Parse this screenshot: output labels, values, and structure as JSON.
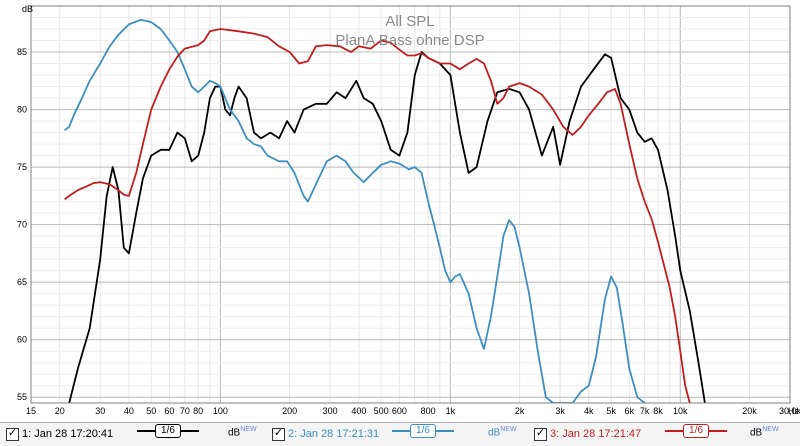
{
  "chart_data": {
    "type": "line",
    "title": "All SPL",
    "subtitle": "PlanA Bass ohne DSP",
    "ylabel": "dB",
    "xlabel": "",
    "x_scale": "log",
    "xlim": [
      15,
      30000
    ],
    "ylim": [
      54.5,
      89
    ],
    "grid": true,
    "x_ticks": [
      {
        "v": 15,
        "l": "15"
      },
      {
        "v": 20,
        "l": "20"
      },
      {
        "v": 30,
        "l": "30"
      },
      {
        "v": 40,
        "l": "40"
      },
      {
        "v": 50,
        "l": "50"
      },
      {
        "v": 60,
        "l": "60"
      },
      {
        "v": 70,
        "l": "70"
      },
      {
        "v": 80,
        "l": "80"
      },
      {
        "v": 100,
        "l": "100"
      },
      {
        "v": 200,
        "l": "200"
      },
      {
        "v": 300,
        "l": "300"
      },
      {
        "v": 400,
        "l": "400"
      },
      {
        "v": 500,
        "l": "500"
      },
      {
        "v": 600,
        "l": "600"
      },
      {
        "v": 800,
        "l": "800"
      },
      {
        "v": 1000,
        "l": "1k"
      },
      {
        "v": 2000,
        "l": "2k"
      },
      {
        "v": 3000,
        "l": "3k"
      },
      {
        "v": 4000,
        "l": "4k"
      },
      {
        "v": 5000,
        "l": "5k"
      },
      {
        "v": 6000,
        "l": "6k"
      },
      {
        "v": 7000,
        "l": "7k"
      },
      {
        "v": 8000,
        "l": "8k"
      },
      {
        "v": 10000,
        "l": "10k"
      },
      {
        "v": 20000,
        "l": "20k"
      },
      {
        "v": 30000,
        "l": "30,0k"
      }
    ],
    "x_unit_label": "Hz",
    "y_ticks": [
      55,
      60,
      65,
      70,
      75,
      80,
      85
    ],
    "series": [
      {
        "name": "1: Jan 28 17:20:41",
        "color": "#000000",
        "points": [
          [
            22,
            54.5
          ],
          [
            24,
            57.5
          ],
          [
            27,
            61
          ],
          [
            30,
            67
          ],
          [
            32,
            72.5
          ],
          [
            34,
            75
          ],
          [
            36,
            73
          ],
          [
            38,
            68
          ],
          [
            40,
            67.5
          ],
          [
            43,
            71
          ],
          [
            46,
            74
          ],
          [
            50,
            76
          ],
          [
            55,
            76.5
          ],
          [
            60,
            76.5
          ],
          [
            65,
            78
          ],
          [
            70,
            77.5
          ],
          [
            75,
            75.5
          ],
          [
            80,
            76
          ],
          [
            85,
            78
          ],
          [
            90,
            81
          ],
          [
            95,
            82
          ],
          [
            100,
            82
          ],
          [
            105,
            80
          ],
          [
            110,
            79.5
          ],
          [
            115,
            81
          ],
          [
            120,
            82
          ],
          [
            130,
            81
          ],
          [
            140,
            78
          ],
          [
            150,
            77.5
          ],
          [
            165,
            78
          ],
          [
            180,
            77.5
          ],
          [
            195,
            79
          ],
          [
            210,
            78
          ],
          [
            230,
            80
          ],
          [
            260,
            80.5
          ],
          [
            290,
            80.5
          ],
          [
            320,
            81.5
          ],
          [
            350,
            81
          ],
          [
            390,
            82.5
          ],
          [
            420,
            81
          ],
          [
            460,
            80.5
          ],
          [
            500,
            79
          ],
          [
            550,
            76.5
          ],
          [
            600,
            76
          ],
          [
            650,
            78
          ],
          [
            700,
            83
          ],
          [
            750,
            85
          ],
          [
            800,
            84.5
          ],
          [
            900,
            84
          ],
          [
            1000,
            83
          ],
          [
            1100,
            78
          ],
          [
            1200,
            74.5
          ],
          [
            1300,
            75
          ],
          [
            1450,
            79
          ],
          [
            1600,
            81.5
          ],
          [
            1800,
            81.8
          ],
          [
            2000,
            81.5
          ],
          [
            2200,
            80
          ],
          [
            2500,
            76
          ],
          [
            2800,
            78.5
          ],
          [
            3000,
            75.2
          ],
          [
            3300,
            79
          ],
          [
            3700,
            82
          ],
          [
            4200,
            83.5
          ],
          [
            4700,
            84.8
          ],
          [
            5000,
            84.5
          ],
          [
            5500,
            81
          ],
          [
            6000,
            80
          ],
          [
            6500,
            78
          ],
          [
            7000,
            77.2
          ],
          [
            7500,
            77.5
          ],
          [
            8000,
            76.5
          ],
          [
            8800,
            73
          ],
          [
            9500,
            69
          ],
          [
            10000,
            66
          ],
          [
            11000,
            62.5
          ],
          [
            12000,
            58
          ],
          [
            12800,
            54.5
          ]
        ]
      },
      {
        "name": "2: Jan 28 17:21:31",
        "color": "#3c8fc0",
        "points": [
          [
            21,
            78.2
          ],
          [
            22,
            78.5
          ],
          [
            23,
            79.5
          ],
          [
            25,
            81
          ],
          [
            27,
            82.5
          ],
          [
            30,
            84
          ],
          [
            33,
            85.5
          ],
          [
            36,
            86.5
          ],
          [
            40,
            87.4
          ],
          [
            45,
            87.8
          ],
          [
            50,
            87.6
          ],
          [
            55,
            87
          ],
          [
            60,
            86
          ],
          [
            65,
            85
          ],
          [
            70,
            83.5
          ],
          [
            75,
            82
          ],
          [
            80,
            81.5
          ],
          [
            85,
            82
          ],
          [
            90,
            82.5
          ],
          [
            95,
            82.3
          ],
          [
            100,
            82
          ],
          [
            110,
            80
          ],
          [
            120,
            79
          ],
          [
            130,
            77.5
          ],
          [
            140,
            77
          ],
          [
            150,
            76.8
          ],
          [
            160,
            76
          ],
          [
            180,
            75.5
          ],
          [
            195,
            75.5
          ],
          [
            210,
            74.5
          ],
          [
            230,
            72.5
          ],
          [
            240,
            72
          ],
          [
            260,
            73.5
          ],
          [
            290,
            75.5
          ],
          [
            320,
            76
          ],
          [
            350,
            75.5
          ],
          [
            380,
            74.5
          ],
          [
            420,
            73.7
          ],
          [
            460,
            74.5
          ],
          [
            500,
            75.2
          ],
          [
            550,
            75.5
          ],
          [
            600,
            75.3
          ],
          [
            660,
            74.8
          ],
          [
            700,
            75
          ],
          [
            750,
            74.5
          ],
          [
            800,
            72
          ],
          [
            850,
            70
          ],
          [
            900,
            68
          ],
          [
            950,
            66
          ],
          [
            1000,
            65
          ],
          [
            1050,
            65.5
          ],
          [
            1100,
            65.7
          ],
          [
            1200,
            64
          ],
          [
            1300,
            61
          ],
          [
            1400,
            59.2
          ],
          [
            1500,
            62
          ],
          [
            1600,
            65.5
          ],
          [
            1700,
            69
          ],
          [
            1800,
            70.4
          ],
          [
            1900,
            69.8
          ],
          [
            2000,
            68
          ],
          [
            2200,
            64
          ],
          [
            2400,
            59
          ],
          [
            2600,
            55
          ],
          [
            2800,
            54.5
          ],
          [
            3400,
            54.5
          ],
          [
            3700,
            55.5
          ],
          [
            4000,
            56
          ],
          [
            4300,
            58.5
          ],
          [
            4700,
            63.5
          ],
          [
            5000,
            65.5
          ],
          [
            5300,
            64.5
          ],
          [
            5600,
            61.5
          ],
          [
            6000,
            57.5
          ],
          [
            6500,
            55
          ],
          [
            7000,
            54.5
          ]
        ]
      },
      {
        "name": "3: Jan 28 17:21:47",
        "color": "#c21e1e",
        "points": [
          [
            21,
            72.2
          ],
          [
            22,
            72.5
          ],
          [
            24,
            73
          ],
          [
            26,
            73.3
          ],
          [
            28,
            73.6
          ],
          [
            30,
            73.7
          ],
          [
            33,
            73.5
          ],
          [
            36,
            73
          ],
          [
            38,
            72.6
          ],
          [
            40,
            72.5
          ],
          [
            43,
            74.5
          ],
          [
            46,
            77
          ],
          [
            50,
            80
          ],
          [
            55,
            82
          ],
          [
            60,
            83.5
          ],
          [
            65,
            84.6
          ],
          [
            70,
            85.3
          ],
          [
            80,
            85.6
          ],
          [
            85,
            86
          ],
          [
            90,
            86.8
          ],
          [
            100,
            87
          ],
          [
            120,
            86.8
          ],
          [
            140,
            86.6
          ],
          [
            160,
            86.3
          ],
          [
            180,
            85.5
          ],
          [
            200,
            85
          ],
          [
            220,
            84
          ],
          [
            240,
            84.2
          ],
          [
            260,
            85.5
          ],
          [
            290,
            85.6
          ],
          [
            330,
            85.5
          ],
          [
            370,
            85
          ],
          [
            400,
            85.5
          ],
          [
            450,
            85.3
          ],
          [
            500,
            86
          ],
          [
            550,
            85.8
          ],
          [
            600,
            85.2
          ],
          [
            650,
            84.7
          ],
          [
            700,
            84.7
          ],
          [
            750,
            84.9
          ],
          [
            800,
            84.5
          ],
          [
            900,
            84
          ],
          [
            1000,
            84
          ],
          [
            1100,
            83.5
          ],
          [
            1200,
            84
          ],
          [
            1300,
            84.4
          ],
          [
            1400,
            84
          ],
          [
            1500,
            82.5
          ],
          [
            1600,
            80.5
          ],
          [
            1700,
            81
          ],
          [
            1800,
            82
          ],
          [
            2000,
            82.3
          ],
          [
            2200,
            82
          ],
          [
            2500,
            81.3
          ],
          [
            2800,
            80
          ],
          [
            3100,
            78.5
          ],
          [
            3400,
            77.8
          ],
          [
            3700,
            78.5
          ],
          [
            4000,
            79.5
          ],
          [
            4400,
            80.5
          ],
          [
            4800,
            81.5
          ],
          [
            5200,
            81.8
          ],
          [
            5500,
            80.5
          ],
          [
            6000,
            77
          ],
          [
            6500,
            74
          ],
          [
            7000,
            72
          ],
          [
            7500,
            70.5
          ],
          [
            8000,
            68.5
          ],
          [
            9000,
            64.5
          ],
          [
            9500,
            62
          ],
          [
            10000,
            59
          ],
          [
            10500,
            56
          ],
          [
            11000,
            54.5
          ]
        ]
      }
    ]
  },
  "legend": {
    "items": [
      {
        "label": "1: Jan 28 17:20:41",
        "smoothing": "1/6",
        "unit": "dB",
        "unit_sup": "NEW",
        "color": "#000000"
      },
      {
        "label": "2: Jan 28 17:21:31",
        "smoothing": "1/6",
        "unit": "dB",
        "unit_sup": "NEW",
        "color": "#3c8fc0"
      },
      {
        "label": "3: Jan 28 17:21:47",
        "smoothing": "1/6",
        "unit": "dB",
        "unit_sup": "NEW",
        "color": "#c21e1e"
      }
    ]
  }
}
